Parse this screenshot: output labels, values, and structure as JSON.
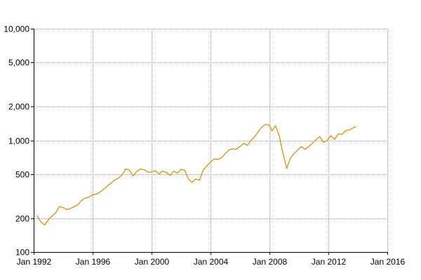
{
  "chart_data": {
    "type": "line",
    "title": "",
    "xlabel": "",
    "ylabel": "",
    "y_scale": "log",
    "ylim": [
      100,
      10000
    ],
    "xlim": [
      "1992-01",
      "2016-01"
    ],
    "grid": true,
    "legend": "none",
    "x_ticks": [
      {
        "date": "1992-01",
        "label": "Jan 1992"
      },
      {
        "date": "1996-01",
        "label": "Jan 1996"
      },
      {
        "date": "2000-01",
        "label": "Jan 2000"
      },
      {
        "date": "2004-01",
        "label": "Jan 2004"
      },
      {
        "date": "2008-01",
        "label": "Jan 2008"
      },
      {
        "date": "2012-01",
        "label": "Jan 2012"
      },
      {
        "date": "2016-01",
        "label": "Jan 2016"
      }
    ],
    "y_ticks": [
      {
        "value": 100,
        "label": "100"
      },
      {
        "value": 200,
        "label": "200"
      },
      {
        "value": 500,
        "label": "500"
      },
      {
        "value": 1000,
        "label": "1,000"
      },
      {
        "value": 2000,
        "label": "2,000"
      },
      {
        "value": 5000,
        "label": "5,000"
      },
      {
        "value": 10000,
        "label": "10,000"
      }
    ],
    "series": [
      {
        "color": "#dd8800",
        "points": [
          [
            "1992-04",
            210
          ],
          [
            "1992-07",
            185
          ],
          [
            "1992-10",
            175
          ],
          [
            "1993-01",
            195
          ],
          [
            "1993-04",
            210
          ],
          [
            "1993-07",
            225
          ],
          [
            "1993-10",
            255
          ],
          [
            "1994-01",
            250
          ],
          [
            "1994-04",
            240
          ],
          [
            "1994-07",
            245
          ],
          [
            "1994-10",
            255
          ],
          [
            "1995-01",
            265
          ],
          [
            "1995-04",
            290
          ],
          [
            "1995-07",
            305
          ],
          [
            "1995-10",
            310
          ],
          [
            "1996-01",
            325
          ],
          [
            "1996-04",
            330
          ],
          [
            "1996-07",
            345
          ],
          [
            "1996-10",
            365
          ],
          [
            "1997-01",
            390
          ],
          [
            "1997-04",
            415
          ],
          [
            "1997-07",
            440
          ],
          [
            "1997-10",
            460
          ],
          [
            "1998-01",
            490
          ],
          [
            "1998-04",
            555
          ],
          [
            "1998-07",
            540
          ],
          [
            "1998-10",
            480
          ],
          [
            "1999-01",
            530
          ],
          [
            "1999-04",
            555
          ],
          [
            "1999-07",
            545
          ],
          [
            "1999-10",
            520
          ],
          [
            "2000-01",
            520
          ],
          [
            "2000-04",
            535
          ],
          [
            "2000-07",
            500
          ],
          [
            "2000-10",
            530
          ],
          [
            "2001-01",
            515
          ],
          [
            "2001-04",
            485
          ],
          [
            "2001-07",
            530
          ],
          [
            "2001-10",
            510
          ],
          [
            "2002-01",
            550
          ],
          [
            "2002-04",
            540
          ],
          [
            "2002-07",
            450
          ],
          [
            "2002-10",
            420
          ],
          [
            "2003-01",
            450
          ],
          [
            "2003-04",
            440
          ],
          [
            "2003-07",
            540
          ],
          [
            "2003-10",
            590
          ],
          [
            "2004-01",
            640
          ],
          [
            "2004-04",
            680
          ],
          [
            "2004-07",
            675
          ],
          [
            "2004-10",
            700
          ],
          [
            "2005-01",
            760
          ],
          [
            "2005-04",
            820
          ],
          [
            "2005-07",
            840
          ],
          [
            "2005-10",
            830
          ],
          [
            "2006-01",
            880
          ],
          [
            "2006-04",
            940
          ],
          [
            "2006-07",
            900
          ],
          [
            "2006-10",
            1000
          ],
          [
            "2007-01",
            1080
          ],
          [
            "2007-04",
            1200
          ],
          [
            "2007-07",
            1320
          ],
          [
            "2007-10",
            1390
          ],
          [
            "2008-01",
            1360
          ],
          [
            "2008-03",
            1220
          ],
          [
            "2008-06",
            1350
          ],
          [
            "2008-09",
            1100
          ],
          [
            "2008-11",
            850
          ],
          [
            "2009-01",
            700
          ],
          [
            "2009-03",
            560
          ],
          [
            "2009-06",
            690
          ],
          [
            "2009-09",
            760
          ],
          [
            "2009-12",
            820
          ],
          [
            "2010-03",
            880
          ],
          [
            "2010-06",
            830
          ],
          [
            "2010-09",
            880
          ],
          [
            "2010-12",
            940
          ],
          [
            "2011-03",
            1020
          ],
          [
            "2011-06",
            1080
          ],
          [
            "2011-09",
            960
          ],
          [
            "2011-12",
            1000
          ],
          [
            "2012-03",
            1100
          ],
          [
            "2012-06",
            1020
          ],
          [
            "2012-09",
            1140
          ],
          [
            "2012-12",
            1130
          ],
          [
            "2013-03",
            1220
          ],
          [
            "2013-06",
            1240
          ],
          [
            "2013-09",
            1290
          ],
          [
            "2013-11",
            1320
          ]
        ]
      }
    ]
  }
}
